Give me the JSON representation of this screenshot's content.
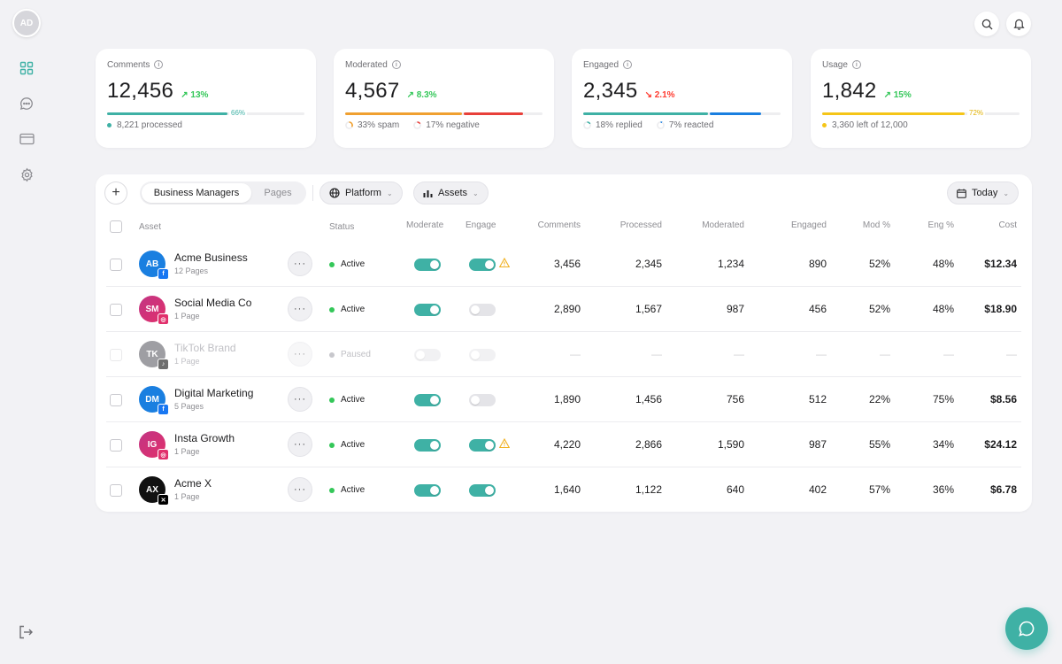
{
  "user": {
    "initials": "AD"
  },
  "colors": {
    "accent": "#3fb1a5",
    "green": "#34c759",
    "red": "#ff3b30",
    "orange": "#f0a030",
    "blue": "#1a7fe0",
    "yellow": "#f5c518"
  },
  "sidebar": {
    "icons": [
      "grid-icon",
      "chat-icon",
      "card-icon",
      "gear-icon"
    ],
    "footer_icon": "logout-icon"
  },
  "topbar": {
    "icons": [
      "search-icon",
      "bell-icon"
    ]
  },
  "stats": [
    {
      "title": "Comments",
      "value": "12,456",
      "change": "13%",
      "direction": "up",
      "bar_pct": 66,
      "pct_label": "66%",
      "foot": "8,221 processed"
    },
    {
      "title": "Moderated",
      "value": "4,567",
      "change": "8.3%",
      "direction": "up",
      "foot_items": [
        "33% spam",
        "17% negative"
      ]
    },
    {
      "title": "Engaged",
      "value": "2,345",
      "change": "2.1%",
      "direction": "down",
      "foot_items": [
        "18% replied",
        "7% reacted"
      ]
    },
    {
      "title": "Usage",
      "value": "1,842",
      "change": "15%",
      "direction": "up",
      "bar_pct": 72,
      "pct_label": "72%",
      "foot": "3,360 left of 12,000"
    }
  ],
  "toolbar": {
    "tabs": [
      "Business Managers",
      "Pages"
    ],
    "active_tab": "Business Managers",
    "filters": {
      "platform": "Platform",
      "assets": "Assets",
      "date": "Today"
    }
  },
  "table": {
    "columns": {
      "asset": "Asset",
      "status": "Status",
      "moderate": "Moderate",
      "engage": "Engage",
      "comments": "Comments",
      "processed": "Processed",
      "moderated": "Moderated",
      "engaged": "Engaged",
      "mod_pct": "Mod %",
      "eng_pct": "Eng %",
      "cost": "Cost"
    },
    "rows": [
      {
        "initials": "AB",
        "name": "Acme Business",
        "sub": "12 Pages",
        "platform": "facebook",
        "status": "Active",
        "moderate": true,
        "engage": true,
        "warning": true,
        "comments": "3,456",
        "processed": "2,345",
        "moderated": "1,234",
        "engaged": "890",
        "mod_pct": "52%",
        "eng_pct": "48%",
        "cost": "$12.34"
      },
      {
        "initials": "SM",
        "name": "Social Media Co",
        "sub": "1 Page",
        "platform": "instagram",
        "status": "Active",
        "moderate": true,
        "engage": false,
        "warning": false,
        "comments": "2,890",
        "processed": "1,567",
        "moderated": "987",
        "engaged": "456",
        "mod_pct": "52%",
        "eng_pct": "48%",
        "cost": "$18.90"
      },
      {
        "initials": "TK",
        "name": "TikTok Brand",
        "sub": "1 Page",
        "platform": "tiktok",
        "status": "Paused",
        "moderate": false,
        "engage": false,
        "warning": false,
        "comments": "—",
        "processed": "—",
        "moderated": "—",
        "engaged": "—",
        "mod_pct": "—",
        "eng_pct": "—",
        "cost": "—"
      },
      {
        "initials": "DM",
        "name": "Digital Marketing",
        "sub": "5 Pages",
        "platform": "facebook",
        "status": "Active",
        "moderate": true,
        "engage": false,
        "warning": false,
        "comments": "1,890",
        "processed": "1,456",
        "moderated": "756",
        "engaged": "512",
        "mod_pct": "22%",
        "eng_pct": "75%",
        "cost": "$8.56"
      },
      {
        "initials": "IG",
        "name": "Insta Growth",
        "sub": "1 Page",
        "platform": "instagram",
        "status": "Active",
        "moderate": true,
        "engage": true,
        "warning": true,
        "comments": "4,220",
        "processed": "2,866",
        "moderated": "1,590",
        "engaged": "987",
        "mod_pct": "55%",
        "eng_pct": "34%",
        "cost": "$24.12"
      },
      {
        "initials": "AX",
        "name": "Acme X",
        "sub": "1 Page",
        "platform": "x",
        "status": "Active",
        "moderate": true,
        "engage": true,
        "warning": false,
        "comments": "1,640",
        "processed": "1,122",
        "moderated": "640",
        "engaged": "402",
        "mod_pct": "57%",
        "eng_pct": "36%",
        "cost": "$6.78"
      }
    ]
  },
  "fab": {
    "icon": "chat-bubble-icon"
  }
}
